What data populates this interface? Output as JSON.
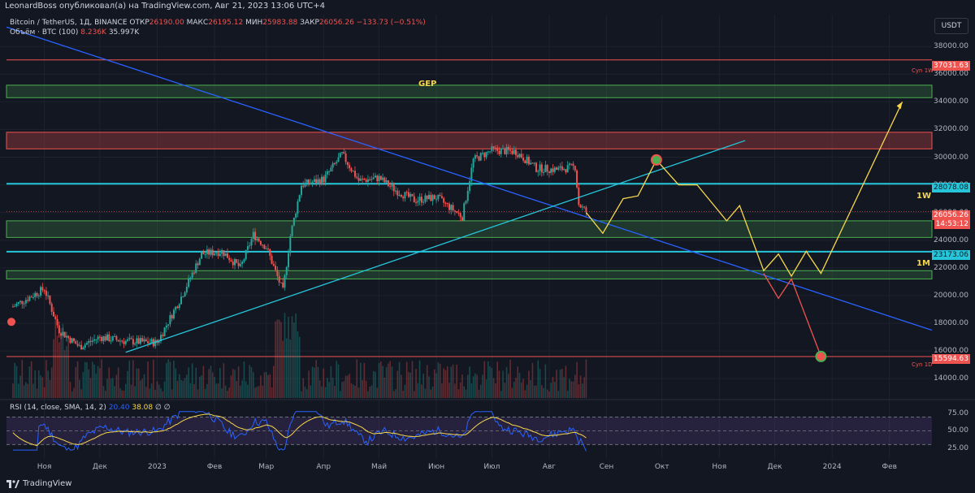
{
  "header": {
    "published": "LeonardBoss опубликовал(а) на TradingView.com, Авг 21, 2023 13:06 UTC+4"
  },
  "legend": {
    "symbol": "Bitcoin / TetherUS, 1Д, BINANCE",
    "open_label": "ОТКР",
    "open": "26190.00",
    "high_label": "МАКС",
    "high": "26195.12",
    "low_label": "МИН",
    "low": "25983.88",
    "close_label": "ЗАКР",
    "close": "26056.26",
    "change": "−133.73 (−0.51%)",
    "volume_label": "Объём · BTC (100)",
    "volume": "8.236K",
    "volume_ma": "35.997K"
  },
  "currency": "USDT",
  "rsi_legend": {
    "label": "RSI (14, close, SMA, 14, 2)",
    "rsi": "20.40",
    "sma": "38.08",
    "extra": "∅ ∅"
  },
  "brand": "TradingView",
  "annotations": {
    "gep": "GEP",
    "w1": "1W",
    "m1": "1M",
    "cyp_1w": "Cyn 1W",
    "cyp_1d": "Cyn 1D"
  },
  "price_tags": {
    "t37031": "37031.63",
    "t28078": "28078.08",
    "t26056": "26056.26",
    "countdown": "14:53:12",
    "t23173": "23173.06",
    "t15594": "15594.63"
  },
  "colors": {
    "background": "#131722",
    "support_zone": "#4caf50",
    "resistance_zone": "#ef5350",
    "level_line": "#26c6da",
    "trendline": "#2962ff",
    "projection": "#f7d74b",
    "bear_projection": "#ef5350",
    "up_candle": "#26a69a",
    "down_candle": "#ef5350"
  },
  "chart_data": {
    "type": "candlestick",
    "title": "Bitcoin / TetherUS, 1Д, BINANCE",
    "y_ticks": [
      38000,
      36000,
      34000,
      32000,
      30000,
      28000,
      26000,
      24000,
      22000,
      20000,
      18000,
      16000,
      14000
    ],
    "y_tick_labels": [
      "38000.00",
      "36000.00",
      "34000.00",
      "32000.00",
      "30000.00",
      "28000.00",
      "26000.00",
      "24000.00",
      "22000.00",
      "20000.00",
      "18000.00",
      "16000.00",
      "14000.00"
    ],
    "ylim": [
      12600,
      40300
    ],
    "x_ticks": [
      "Ноя",
      "Дек",
      "2023",
      "Фев",
      "Мар",
      "Апр",
      "Май",
      "Июн",
      "Июл",
      "Авг",
      "Сен",
      "Окт",
      "Ноя",
      "Дек",
      "2024",
      "Фев"
    ],
    "x_tick_dates": [
      "2022-11-01",
      "2022-12-01",
      "2023-01-01",
      "2023-02-01",
      "2023-03-01",
      "2023-04-01",
      "2023-05-01",
      "2023-06-01",
      "2023-07-01",
      "2023-08-01",
      "2023-09-01",
      "2023-10-01",
      "2023-11-01",
      "2023-12-01",
      "2024-01-01",
      "2024-02-01"
    ],
    "horizontal_levels": [
      {
        "value": 37031.63,
        "label": "Cyn 1W",
        "color": "#ef5350"
      },
      {
        "value": 28078.08,
        "label": "1W",
        "color": "#26c6da"
      },
      {
        "value": 23173.06,
        "label": "1M",
        "color": "#26c6da"
      },
      {
        "value": 15594.63,
        "label": "Cyn 1D",
        "color": "#ef5350"
      }
    ],
    "zones": [
      {
        "from": 34300,
        "to": 35200,
        "type": "support",
        "label": "GEP"
      },
      {
        "from": 30600,
        "to": 31800,
        "type": "resistance"
      },
      {
        "from": 24200,
        "to": 25400,
        "type": "support"
      },
      {
        "from": 21200,
        "to": 21800,
        "type": "support"
      }
    ],
    "close_series": {
      "dates": [
        "2022-10-15",
        "2022-11-01",
        "2022-11-09",
        "2022-11-20",
        "2022-12-01",
        "2022-12-15",
        "2023-01-01",
        "2023-01-14",
        "2023-01-25",
        "2023-02-05",
        "2023-02-15",
        "2023-02-22",
        "2023-03-01",
        "2023-03-10",
        "2023-03-14",
        "2023-03-20",
        "2023-04-01",
        "2023-04-11",
        "2023-04-20",
        "2023-05-01",
        "2023-05-10",
        "2023-05-20",
        "2023-06-01",
        "2023-06-15",
        "2023-06-21",
        "2023-07-01",
        "2023-07-14",
        "2023-07-25",
        "2023-08-05",
        "2023-08-15",
        "2023-08-17",
        "2023-08-21"
      ],
      "values": [
        19200,
        20500,
        17500,
        16300,
        17000,
        16700,
        16600,
        19900,
        23000,
        23200,
        22000,
        24400,
        23500,
        20300,
        24300,
        28000,
        28400,
        30200,
        28300,
        28500,
        27600,
        26900,
        27100,
        25700,
        29800,
        30500,
        30400,
        29200,
        29100,
        29300,
        26600,
        26056
      ]
    },
    "rsi": {
      "value": 20.4,
      "sma": 38.08,
      "levels": [
        70,
        50,
        30
      ],
      "ticks": [
        "75.00",
        "50.00",
        "25.00"
      ]
    },
    "projections": [
      {
        "name": "bull",
        "points": [
          [
            "2023-08-21",
            26000
          ],
          [
            "2023-08-30",
            24500
          ],
          [
            "2023-09-10",
            27000
          ],
          [
            "2023-09-18",
            27200
          ],
          [
            "2023-09-28",
            29800
          ],
          [
            "2023-10-10",
            28000
          ],
          [
            "2023-10-20",
            28000
          ],
          [
            "2023-11-05",
            25400
          ],
          [
            "2023-11-12",
            26500
          ],
          [
            "2023-11-25",
            21800
          ],
          [
            "2023-12-03",
            23000
          ],
          [
            "2023-12-10",
            21400
          ],
          [
            "2023-12-18",
            23200
          ],
          [
            "2023-12-26",
            21600
          ],
          [
            "2024-02-08",
            34000
          ]
        ]
      },
      {
        "name": "bear",
        "points": [
          [
            "2023-11-25",
            21600
          ],
          [
            "2023-12-03",
            19800
          ],
          [
            "2023-12-10",
            21200
          ],
          [
            "2023-12-26",
            15600
          ]
        ]
      }
    ]
  }
}
